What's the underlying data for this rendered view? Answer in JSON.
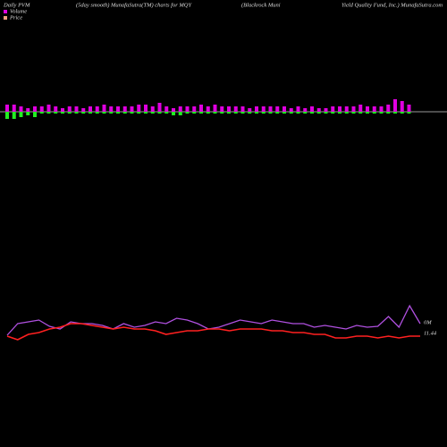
{
  "chart_data": {
    "type": "bar",
    "title_parts": [
      "Daily PVM",
      "(5day smooth) MunafaSutra(TM) charts for MQY",
      "(Blackrock Muni",
      "Yield Quality Fund, Inc.) MunafaSutra.com"
    ],
    "bars": {
      "up": {
        "color": "#e000e0",
        "values": [
          8,
          8,
          6,
          4,
          6,
          6,
          8,
          6,
          4,
          6,
          6,
          4,
          6,
          6,
          8,
          6,
          6,
          6,
          6,
          8,
          8,
          6,
          10,
          6,
          4,
          6,
          6,
          6,
          8,
          6,
          8,
          6,
          6,
          6,
          6,
          4,
          6,
          6,
          6,
          6,
          6,
          4,
          6,
          4,
          6,
          4,
          4,
          6,
          6,
          6,
          6,
          8,
          6,
          6,
          6,
          8,
          14,
          12,
          8
        ]
      },
      "down": {
        "color": "#22ee22",
        "values": [
          8,
          8,
          6,
          4,
          6,
          2,
          2,
          2,
          2,
          2,
          2,
          2,
          2,
          2,
          2,
          2,
          2,
          2,
          2,
          2,
          2,
          2,
          2,
          2,
          4,
          4,
          2,
          2,
          2,
          2,
          2,
          2,
          2,
          2,
          2,
          2,
          2,
          2,
          2,
          2,
          2,
          2,
          2,
          2,
          2,
          2,
          2,
          2,
          2,
          2,
          2,
          2,
          2,
          2,
          2,
          2,
          2,
          2,
          2
        ]
      }
    },
    "series": [
      {
        "name": "Volume",
        "color": "#b050e0",
        "legend_color": "#e000e0",
        "values": [
          25,
          38,
          40,
          42,
          35,
          32,
          40,
          38,
          38,
          36,
          32,
          38,
          34,
          36,
          40,
          38,
          44,
          42,
          38,
          32,
          34,
          38,
          42,
          40,
          38,
          42,
          40,
          38,
          38,
          34,
          36,
          34,
          32,
          36,
          34,
          35,
          46,
          34,
          58,
          38
        ]
      },
      {
        "name": "Price",
        "color": "#ff2020",
        "legend_color": "#f0a080",
        "values": [
          24,
          20,
          26,
          28,
          32,
          34,
          38,
          38,
          36,
          34,
          32,
          34,
          32,
          32,
          30,
          26,
          28,
          30,
          30,
          32,
          32,
          30,
          32,
          32,
          32,
          30,
          30,
          28,
          28,
          26,
          26,
          22,
          22,
          24,
          24,
          22,
          24,
          22,
          24,
          24
        ]
      }
    ],
    "annotations": [
      "0M",
      "11.44"
    ]
  }
}
